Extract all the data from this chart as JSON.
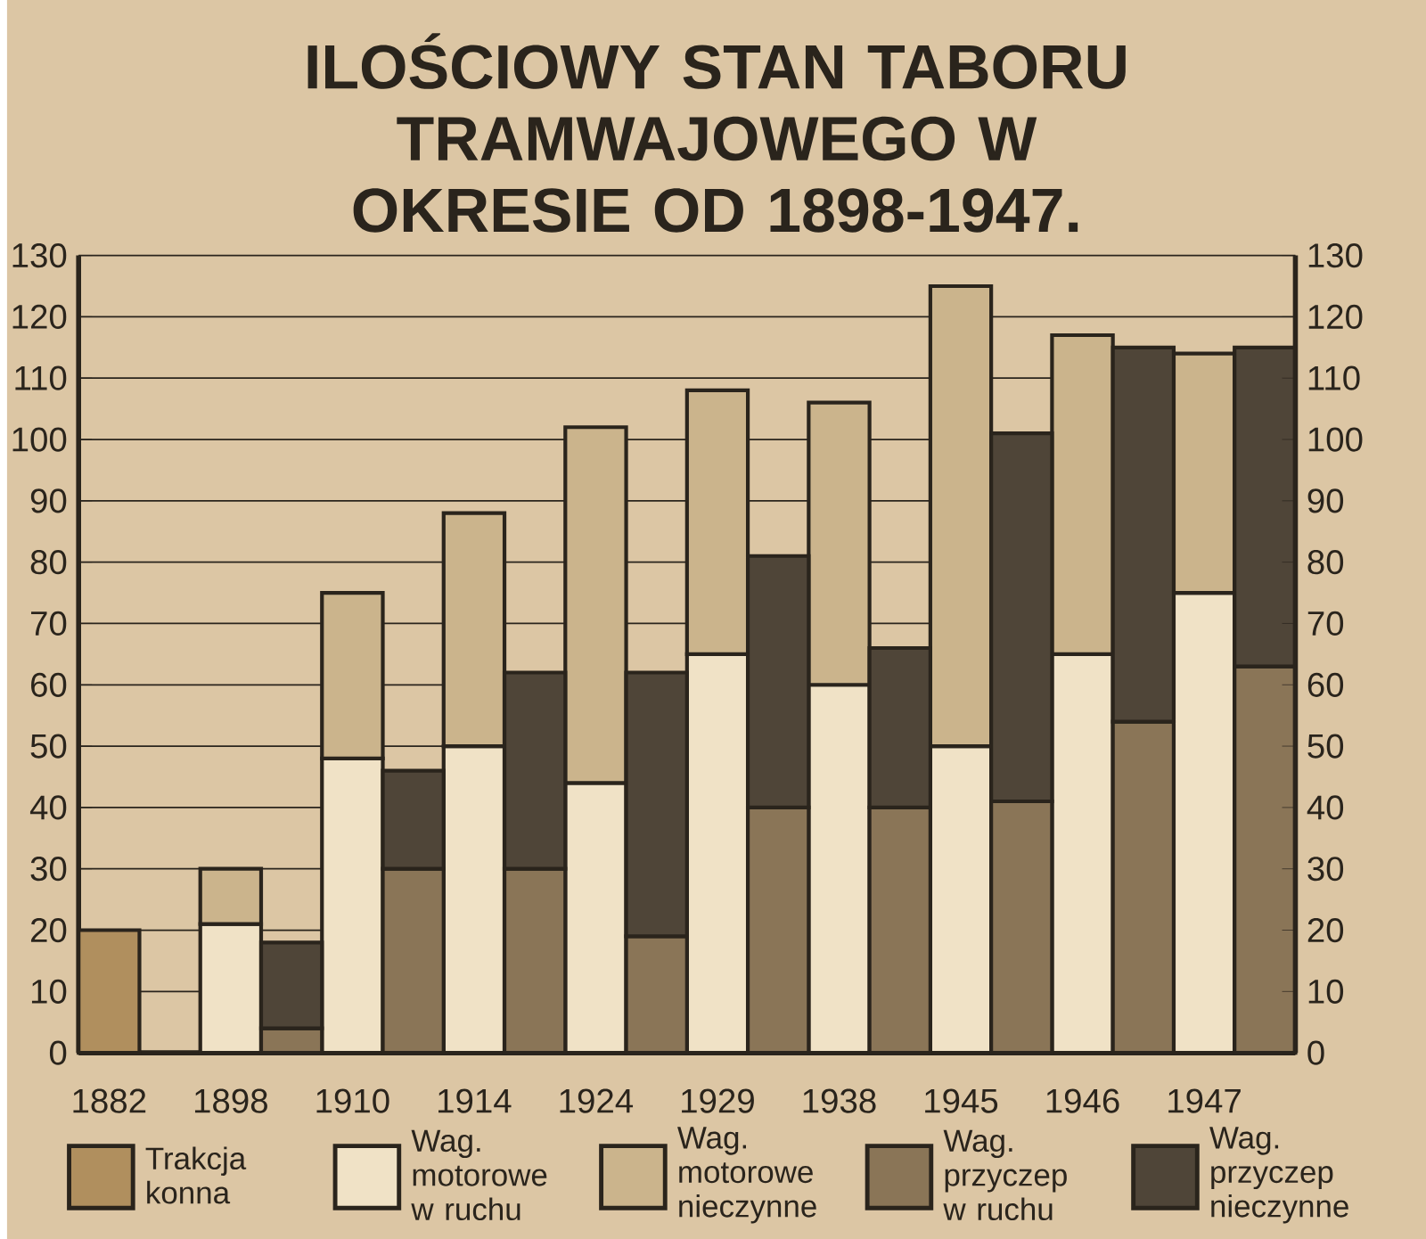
{
  "chart_data": {
    "type": "bar",
    "title": "ILOŚCIOWY STAN TABORU TRAMWAJOWEGO W OKRESIE OD 1898-1947.",
    "categories": [
      "1882",
      null,
      "1898",
      null,
      "1910",
      null,
      "1914",
      null,
      "1924",
      null,
      "1929",
      null,
      "1938",
      null,
      "1945",
      null,
      "1946",
      null,
      "1947",
      null
    ],
    "stacked": true,
    "series": [
      {
        "name": "Trakcja konna",
        "color": "#b08f5e",
        "values": [
          20,
          null,
          null,
          null,
          null,
          null,
          null,
          null,
          null,
          null,
          null,
          null,
          null,
          null,
          null,
          null,
          null,
          null,
          null,
          null
        ]
      },
      {
        "name": "Wag. motorowe w ruchu",
        "color": "#f0e2c6",
        "values": [
          null,
          null,
          21,
          null,
          48,
          null,
          50,
          null,
          44,
          null,
          65,
          null,
          60,
          null,
          50,
          null,
          65,
          null,
          75,
          null
        ]
      },
      {
        "name": "Wag. motorowe nieczynne",
        "color": "#cbb48c",
        "values": [
          null,
          null,
          9,
          null,
          27,
          null,
          38,
          null,
          58,
          null,
          43,
          null,
          46,
          null,
          75,
          null,
          52,
          null,
          39,
          null
        ]
      },
      {
        "name": "Wag. przyczep w ruchu",
        "color": "#8a7557",
        "values": [
          null,
          null,
          null,
          4,
          null,
          30,
          null,
          30,
          null,
          19,
          null,
          40,
          null,
          40,
          null,
          41,
          null,
          54,
          null,
          63
        ]
      },
      {
        "name": "Wag. przyczep nieczynne",
        "color": "#4f4538",
        "values": [
          null,
          null,
          null,
          14,
          null,
          16,
          null,
          32,
          null,
          43,
          null,
          41,
          null,
          26,
          null,
          60,
          null,
          61,
          null,
          52
        ]
      }
    ],
    "ylim": [
      0,
      130
    ],
    "yticks": [
      0,
      10,
      20,
      30,
      40,
      50,
      60,
      70,
      80,
      90,
      100,
      110,
      120,
      130
    ],
    "y2lim": [
      0,
      130
    ],
    "y2ticks": [
      0,
      10,
      20,
      30,
      40,
      50,
      60,
      70,
      80,
      90,
      100,
      110,
      120,
      130
    ],
    "grid": "y",
    "legend": "bottom"
  }
}
